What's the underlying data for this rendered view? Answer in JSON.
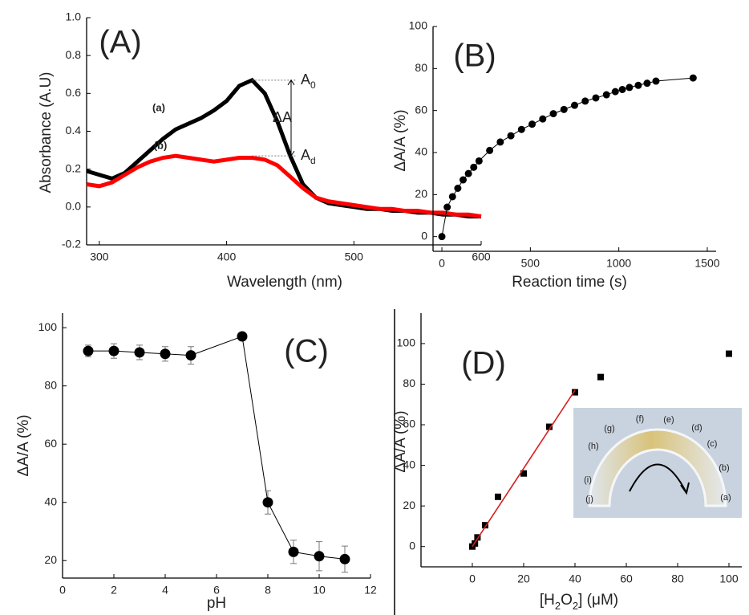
{
  "chart_data": [
    {
      "type": "line",
      "panel_label": "(A)",
      "x_label": "Wavelength (nm)",
      "y_label": "Absorbance (A.U)",
      "xlim": [
        290,
        600
      ],
      "ylim": [
        -0.2,
        1.0
      ],
      "xticks": [
        300,
        400,
        500,
        600
      ],
      "yticks": [
        -0.2,
        {
          "value": 0,
          "label": "0.0"
        },
        0.2,
        0.4,
        0.6,
        0.8,
        {
          "value": 1,
          "label": "1.0"
        }
      ],
      "x": [
        290,
        300,
        310,
        320,
        330,
        340,
        350,
        360,
        370,
        380,
        390,
        400,
        410,
        420,
        430,
        440,
        450,
        460,
        470,
        480,
        490,
        500,
        510,
        520,
        530,
        540,
        550,
        560,
        570,
        580,
        590,
        600
      ],
      "series": [
        {
          "name": "(a)",
          "color": "#000000",
          "values": [
            0.19,
            0.17,
            0.15,
            0.18,
            0.24,
            0.3,
            0.36,
            0.41,
            0.44,
            0.47,
            0.51,
            0.56,
            0.64,
            0.67,
            0.6,
            0.45,
            0.27,
            0.12,
            0.05,
            0.02,
            0.01,
            0,
            -0.01,
            -0.01,
            -0.02,
            -0.02,
            -0.03,
            -0.03,
            -0.04,
            -0.04,
            -0.05,
            -0.05
          ]
        },
        {
          "name": "(b)",
          "color": "#ff0000",
          "values": [
            0.12,
            0.11,
            0.13,
            0.17,
            0.21,
            0.24,
            0.26,
            0.27,
            0.26,
            0.25,
            0.24,
            0.25,
            0.26,
            0.26,
            0.25,
            0.22,
            0.16,
            0.1,
            0.05,
            0.03,
            0.02,
            0.01,
            0,
            -0.01,
            -0.01,
            -0.02,
            -0.02,
            -0.03,
            -0.03,
            -0.04,
            -0.04,
            -0.05
          ]
        }
      ],
      "annotations": [
        {
          "text": "A",
          "sub": "0"
        },
        {
          "text": "ΔA"
        },
        {
          "text": "A",
          "sub": "d"
        }
      ]
    },
    {
      "type": "scatter",
      "panel_label": "(B)",
      "x_label": "Reaction time (s)",
      "y_label": "ΔA/A (%)",
      "xlim": [
        -50,
        1550
      ],
      "ylim": [
        -7,
        100
      ],
      "xticks": [
        0,
        500,
        1000,
        1500
      ],
      "yticks": [
        0,
        20,
        40,
        60,
        80,
        100
      ],
      "series": [
        {
          "color": "#000000",
          "marker": "circle",
          "connected": true,
          "x": [
            0,
            30,
            60,
            90,
            120,
            150,
            180,
            210,
            270,
            330,
            390,
            450,
            510,
            570,
            630,
            690,
            750,
            810,
            870,
            930,
            980,
            1020,
            1060,
            1110,
            1160,
            1210,
            1420
          ],
          "values": [
            0,
            14,
            19,
            23,
            27,
            30,
            33,
            36,
            41,
            45,
            48,
            51,
            53.5,
            56,
            58.5,
            60.5,
            62.5,
            64.5,
            66,
            67.5,
            69,
            70,
            71,
            72,
            73,
            74,
            75.5
          ]
        }
      ]
    },
    {
      "type": "scatter",
      "panel_label": "(C)",
      "x_label": "pH",
      "y_label": "ΔA/A  (%)",
      "xlim": [
        0,
        12
      ],
      "ylim": [
        14,
        105
      ],
      "xticks": [
        0,
        2,
        4,
        6,
        8,
        10,
        12
      ],
      "yticks": [
        20,
        40,
        60,
        80,
        100
      ],
      "series": [
        {
          "color": "#000000",
          "marker": "circle",
          "connected": true,
          "x": [
            1,
            2,
            3,
            4,
            5,
            7,
            8,
            9,
            10,
            11
          ],
          "values": [
            92,
            92,
            91.5,
            91,
            90.5,
            97,
            40,
            23,
            21.5,
            20.5
          ],
          "errors": [
            2,
            2.5,
            2.5,
            2.5,
            3,
            1,
            4,
            4,
            5,
            4.5
          ]
        }
      ]
    },
    {
      "type": "scatter",
      "panel_label": "(D)",
      "x_label_parts": [
        "[H",
        "2",
        "O",
        "2",
        "] (μM)"
      ],
      "y_label": "ΔA/A (%)",
      "xlim": [
        -20,
        105
      ],
      "ylim": [
        -10,
        115
      ],
      "xticks": [
        0,
        20,
        40,
        60,
        80,
        100
      ],
      "yticks": [
        0,
        20,
        40,
        60,
        80,
        100
      ],
      "series": [
        {
          "color": "#000000",
          "marker": "square",
          "connected": false,
          "x": [
            0,
            1,
            2,
            5,
            10,
            20,
            30,
            40,
            50,
            100
          ],
          "values": [
            0,
            1.5,
            4.5,
            10.5,
            24.5,
            36,
            59,
            76,
            83.5,
            95
          ]
        },
        {
          "color": "#d62020",
          "marker": "none",
          "connected": true,
          "x": [
            0,
            40
          ],
          "values": [
            0,
            77
          ]
        }
      ],
      "inset_labels": [
        "(a)",
        "(b)",
        "(c)",
        "(d)",
        "(e)",
        "(f)",
        "(g)",
        "(h)",
        "(i)",
        "(j)"
      ]
    }
  ]
}
